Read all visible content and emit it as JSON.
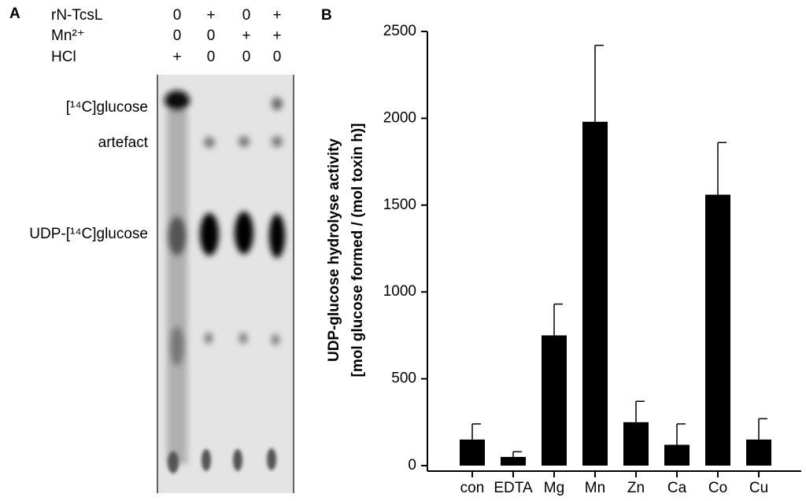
{
  "panel_a": {
    "label": "A",
    "rows": [
      {
        "name": "rN-TcsL",
        "lanes": [
          "0",
          "+",
          "0",
          "+"
        ]
      },
      {
        "name": "Mn²⁺",
        "lanes": [
          "0",
          "0",
          "+",
          "+"
        ]
      },
      {
        "name": "HCl",
        "lanes": [
          "+",
          "0",
          "0",
          "0"
        ]
      }
    ],
    "bands": [
      "[¹⁴C]glucose",
      "artefact",
      "UDP-[¹⁴C]glucose"
    ]
  },
  "chart_data": {
    "type": "bar",
    "panel_label": "B",
    "y_label": [
      "UDP-glucose hydrolyse activity",
      "[mol glucose formed / (mol toxin h)]"
    ],
    "categories": [
      "con",
      "EDTA",
      "Mg",
      "Mn",
      "Zn",
      "Ca",
      "Co",
      "Cu"
    ],
    "values": [
      150,
      50,
      750,
      1980,
      250,
      120,
      1560,
      150
    ],
    "errors": [
      90,
      30,
      180,
      440,
      120,
      120,
      300,
      120
    ],
    "color": "#000000",
    "ylim": [
      0,
      2500
    ],
    "yticks": [
      0,
      500,
      1000,
      1500,
      2000,
      2500
    ],
    "grid": false
  }
}
